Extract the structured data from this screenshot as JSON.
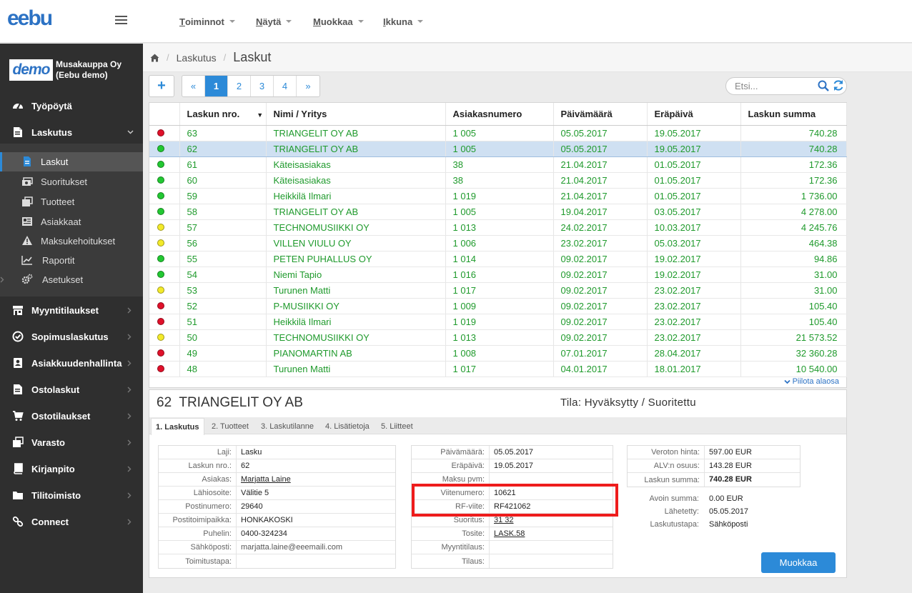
{
  "app": {
    "logo": "eebu"
  },
  "top_menu": [
    {
      "u": "T",
      "rest": "oiminnot"
    },
    {
      "u": "N",
      "rest": "äytä"
    },
    {
      "u": "M",
      "rest": "uokkaa"
    },
    {
      "u": "I",
      "rest": "kkuna"
    }
  ],
  "company": {
    "logo_text": "demo",
    "name_line1": "Musakauppa Oy",
    "name_line2": "(Eebu demo)"
  },
  "sidebar": {
    "items": [
      {
        "label": "Työpöytä",
        "icon": "dashboard-icon"
      },
      {
        "label": "Laskutus",
        "icon": "invoice-icon"
      },
      {
        "label": "Myyntitilaukset",
        "icon": "store-icon"
      },
      {
        "label": "Sopimuslaskutus",
        "icon": "check-circle-icon"
      },
      {
        "label": "Asiakkuudenhallinta",
        "icon": "contact-icon"
      },
      {
        "label": "Ostolaskut",
        "icon": "purchase-invoice-icon"
      },
      {
        "label": "Ostotilaukset",
        "icon": "cart-icon"
      },
      {
        "label": "Varasto",
        "icon": "warehouse-icon"
      },
      {
        "label": "Kirjanpito",
        "icon": "book-icon"
      },
      {
        "label": "Tilitoimisto",
        "icon": "folder-icon"
      },
      {
        "label": "Connect",
        "icon": "link-icon"
      }
    ],
    "sub_items": [
      {
        "label": "Laskut",
        "icon": "document-icon"
      },
      {
        "label": "Suoritukset",
        "icon": "payment-icon"
      },
      {
        "label": "Tuotteet",
        "icon": "products-icon"
      },
      {
        "label": "Asiakkaat",
        "icon": "customers-icon"
      },
      {
        "label": "Maksukehoitukset",
        "icon": "warning-icon"
      },
      {
        "label": "Raportit",
        "icon": "chart-icon"
      },
      {
        "label": "Asetukset",
        "icon": "cogs-icon"
      }
    ]
  },
  "breadcrumb": {
    "parent": "Laskutus",
    "current": "Laskut"
  },
  "toolbar": {
    "add_label": "+",
    "pages": [
      "«",
      "1",
      "2",
      "3",
      "4",
      "»"
    ],
    "current_page": "1",
    "search_placeholder": "Etsi..."
  },
  "table": {
    "columns": [
      "Laskun nro.",
      "Nimi / Yritys",
      "Asiakasnumero",
      "Päivämäärä",
      "Eräpäivä",
      "Laskun summa"
    ],
    "rows": [
      {
        "status": "red",
        "nro": "63",
        "name": "TRIANGELIT OY AB",
        "asiakas": "1 005",
        "pvm": "05.05.2017",
        "era": "19.05.2017",
        "summa": "740.28"
      },
      {
        "status": "green",
        "nro": "62",
        "name": "TRIANGELIT OY AB",
        "asiakas": "1 005",
        "pvm": "05.05.2017",
        "era": "19.05.2017",
        "summa": "740.28"
      },
      {
        "status": "green",
        "nro": "61",
        "name": "Käteisasiakas",
        "asiakas": "38",
        "pvm": "21.04.2017",
        "era": "01.05.2017",
        "summa": "172.36"
      },
      {
        "status": "green",
        "nro": "60",
        "name": "Käteisasiakas",
        "asiakas": "38",
        "pvm": "21.04.2017",
        "era": "01.05.2017",
        "summa": "172.36"
      },
      {
        "status": "green",
        "nro": "59",
        "name": "Heikkilä Ilmari",
        "asiakas": "1 019",
        "pvm": "21.04.2017",
        "era": "01.05.2017",
        "summa": "1 736.00"
      },
      {
        "status": "green",
        "nro": "58",
        "name": "TRIANGELIT OY AB",
        "asiakas": "1 005",
        "pvm": "19.04.2017",
        "era": "03.05.2017",
        "summa": "4 278.00"
      },
      {
        "status": "yellow",
        "nro": "57",
        "name": "TECHNOMUSIIKKI OY",
        "asiakas": "1 013",
        "pvm": "24.02.2017",
        "era": "10.03.2017",
        "summa": "4 245.76"
      },
      {
        "status": "yellow",
        "nro": "56",
        "name": "VILLEN VIULU OY",
        "asiakas": "1 006",
        "pvm": "23.02.2017",
        "era": "05.03.2017",
        "summa": "464.38"
      },
      {
        "status": "green",
        "nro": "55",
        "name": "PETEN PUHALLUS OY",
        "asiakas": "1 014",
        "pvm": "09.02.2017",
        "era": "19.02.2017",
        "summa": "94.86"
      },
      {
        "status": "green",
        "nro": "54",
        "name": "Niemi Tapio",
        "asiakas": "1 016",
        "pvm": "09.02.2017",
        "era": "19.02.2017",
        "summa": "31.00"
      },
      {
        "status": "yellow",
        "nro": "53",
        "name": "Turunen Matti",
        "asiakas": "1 017",
        "pvm": "09.02.2017",
        "era": "23.02.2017",
        "summa": "31.00"
      },
      {
        "status": "red",
        "nro": "52",
        "name": "P-MUSIIKKI OY",
        "asiakas": "1 009",
        "pvm": "09.02.2017",
        "era": "23.02.2017",
        "summa": "105.40"
      },
      {
        "status": "red",
        "nro": "51",
        "name": "Heikkilä Ilmari",
        "asiakas": "1 019",
        "pvm": "09.02.2017",
        "era": "23.02.2017",
        "summa": "105.40"
      },
      {
        "status": "yellow",
        "nro": "50",
        "name": "TECHNOMUSIIKKI OY",
        "asiakas": "1 013",
        "pvm": "09.02.2017",
        "era": "23.02.2017",
        "summa": "21 573.52"
      },
      {
        "status": "red",
        "nro": "49",
        "name": "PIANOMARTIN AB",
        "asiakas": "1 008",
        "pvm": "07.01.2017",
        "era": "28.04.2017",
        "summa": "32 360.28"
      },
      {
        "status": "red",
        "nro": "48",
        "name": "Turunen Matti",
        "asiakas": "1 017",
        "pvm": "04.01.2017",
        "era": "18.01.2017",
        "summa": "10 540.00"
      }
    ],
    "selected_row": 1,
    "hide_link": "Piilota alaosa"
  },
  "colors": {
    "red": "#e0102a",
    "green": "#22c832",
    "yellow": "#f3ea2a",
    "accent": "#2c8ad8"
  },
  "detail": {
    "number": "62",
    "name": "TRIANGELIT OY AB",
    "status": "Tila: Hyväksytty / Suoritettu",
    "tabs": [
      "1. Laskutus",
      "2. Tuotteet",
      "3. Laskutilanne",
      "4. Lisätietoja",
      "5. Liitteet"
    ],
    "customer_fields": [
      {
        "label": "Laji:",
        "value": "Lasku"
      },
      {
        "label": "Laskun nro.:",
        "value": "62"
      },
      {
        "label": "Asiakas:",
        "value": "Marjatta Laine",
        "link": true
      },
      {
        "label": "Lähiosoite:",
        "value": "Välitie 5"
      },
      {
        "label": "Postinumero:",
        "value": "29640"
      },
      {
        "label": "Postitoimipaikka:",
        "value": "HONKAKOSKI"
      },
      {
        "label": "Puhelin:",
        "value": "0400-324234"
      },
      {
        "label": "Sähköposti:",
        "value": "marjatta.laine@eeemaili.com",
        "grey": true
      },
      {
        "label": "Toimitustapa:",
        "value": ""
      }
    ],
    "invoice_fields": [
      {
        "label": "Päivämäärä:",
        "value": "05.05.2017"
      },
      {
        "label": "Eräpäivä:",
        "value": "19.05.2017"
      },
      {
        "label": "Maksu pvm:",
        "value": ""
      },
      {
        "label": "Viitenumero:",
        "value": "10621"
      },
      {
        "label": "RF-viite:",
        "value": "RF421062"
      },
      {
        "label": "Suoritus:",
        "value": "31  32",
        "link": true
      },
      {
        "label": "Tosite:",
        "value": "LASK.58",
        "link": true
      },
      {
        "label": "Myyntitilaus:",
        "value": ""
      },
      {
        "label": "Tilaus:",
        "value": ""
      }
    ],
    "sum_fields": [
      {
        "label": "Veroton hinta:",
        "value": "597.00 EUR"
      },
      {
        "label": "ALV:n osuus:",
        "value": "143.28 EUR"
      },
      {
        "label": "Laskun summa:",
        "value": "740.28 EUR",
        "bold": true
      }
    ],
    "extra_fields": [
      {
        "label": "Avoin summa:",
        "value": "0.00 EUR"
      },
      {
        "label": "Lähetetty:",
        "value": "05.05.2017"
      },
      {
        "label": "Laskutustapa:",
        "value": "Sähköposti"
      }
    ],
    "edit_label": "Muokkaa"
  }
}
